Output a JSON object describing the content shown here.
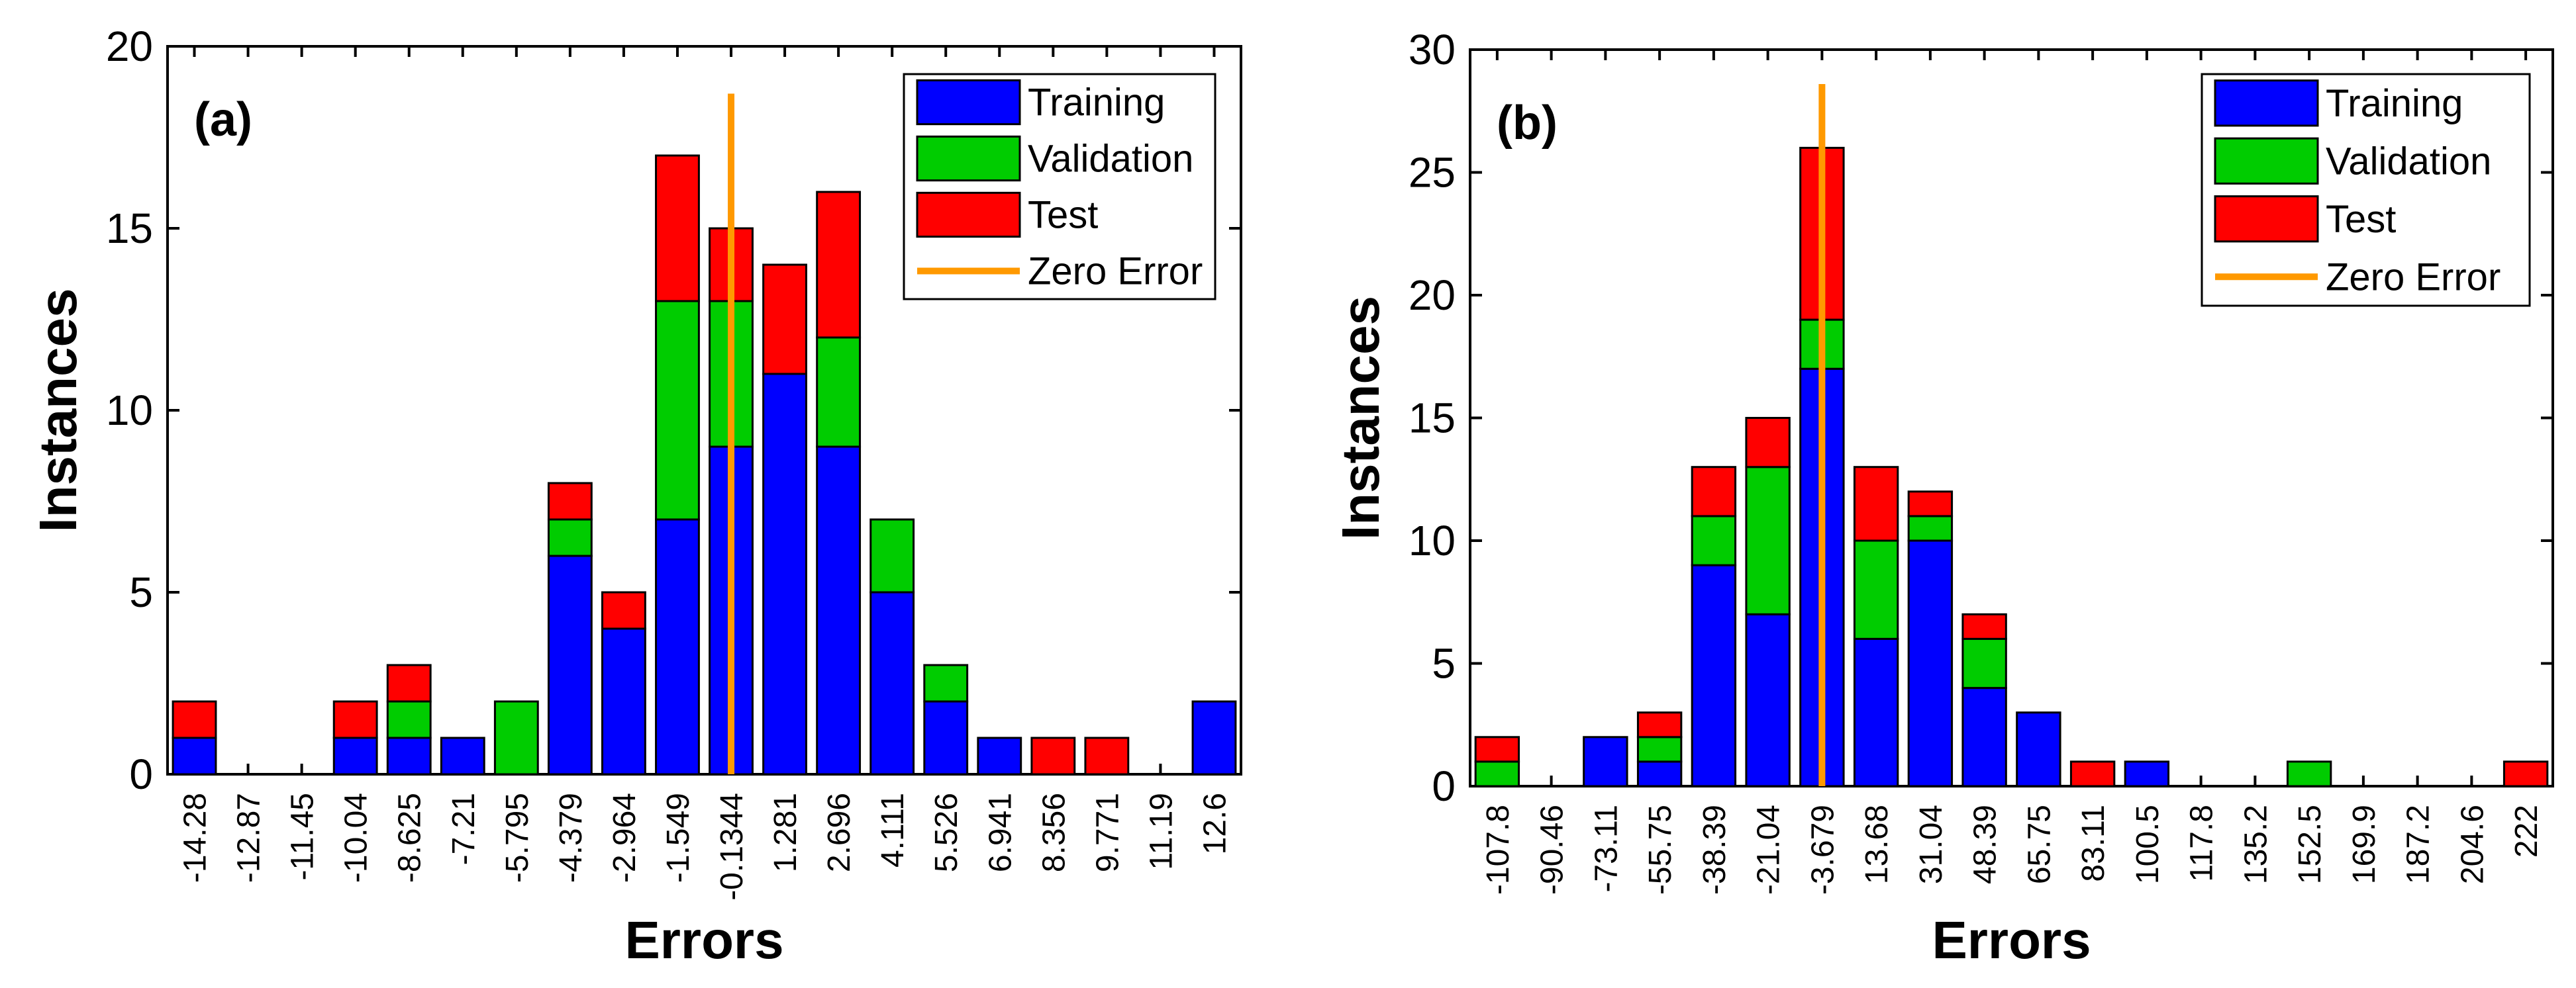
{
  "colors": {
    "training": "#0000FF",
    "validation": "#00CC00",
    "test": "#FF0000",
    "zero_error": "#FF9900",
    "axis": "#000000"
  },
  "chart_data": [
    {
      "type": "bar",
      "stacked": true,
      "panel_label": "(a)",
      "xlabel": "Errors",
      "ylabel": "Instances",
      "ylim": [
        0,
        20
      ],
      "yticks": [
        "0",
        "5",
        "10",
        "15",
        "20"
      ],
      "categories": [
        "-14.28",
        "-12.87",
        "-11.45",
        "-10.04",
        "-8.625",
        "-7.21",
        "-5.795",
        "-4.379",
        "-2.964",
        "-1.549",
        "-0.1344",
        "1.281",
        "2.696",
        "4.111",
        "5.526",
        "6.941",
        "8.356",
        "9.771",
        "11.19",
        "12.6"
      ],
      "series": [
        {
          "name": "Training",
          "values": [
            1,
            0,
            0,
            1,
            1,
            1,
            0,
            6,
            4,
            7,
            9,
            11,
            9,
            5,
            2,
            1,
            0,
            0,
            0,
            2
          ]
        },
        {
          "name": "Validation",
          "values": [
            0,
            0,
            0,
            0,
            1,
            0,
            2,
            1,
            0,
            6,
            4,
            0,
            3,
            2,
            1,
            0,
            0,
            0,
            0,
            0
          ]
        },
        {
          "name": "Test",
          "values": [
            1,
            0,
            0,
            1,
            1,
            0,
            0,
            1,
            1,
            4,
            2,
            3,
            4,
            0,
            0,
            0,
            1,
            1,
            0,
            0
          ]
        }
      ],
      "zero_error": {
        "name": "Zero Error",
        "category_index": 10.0,
        "y_top": 18.7
      },
      "legend": [
        "Training",
        "Validation",
        "Test",
        "Zero Error"
      ],
      "legend_position": "top-right"
    },
    {
      "type": "bar",
      "stacked": true,
      "panel_label": "(b)",
      "xlabel": "Errors",
      "ylabel": "Instances",
      "ylim": [
        0,
        30
      ],
      "yticks": [
        "0",
        "5",
        "10",
        "15",
        "20",
        "25",
        "30"
      ],
      "categories": [
        "-107.8",
        "-90.46",
        "-73.11",
        "-55.75",
        "-38.39",
        "-21.04",
        "-3.679",
        "13.68",
        "31.04",
        "48.39",
        "65.75",
        "83.11",
        "100.5",
        "117.8",
        "135.2",
        "152.5",
        "169.9",
        "187.2",
        "204.6",
        "222"
      ],
      "series": [
        {
          "name": "Training",
          "values": [
            0,
            0,
            2,
            1,
            9,
            7,
            17,
            6,
            10,
            4,
            3,
            0,
            1,
            0,
            0,
            0,
            0,
            0,
            0,
            0
          ]
        },
        {
          "name": "Validation",
          "values": [
            1,
            0,
            0,
            1,
            2,
            6,
            2,
            4,
            1,
            2,
            0,
            0,
            0,
            0,
            0,
            1,
            0,
            0,
            0,
            0
          ]
        },
        {
          "name": "Test",
          "values": [
            1,
            0,
            0,
            1,
            2,
            2,
            7,
            3,
            1,
            1,
            0,
            1,
            0,
            0,
            0,
            0,
            0,
            0,
            0,
            1
          ]
        }
      ],
      "zero_error": {
        "name": "Zero Error",
        "category_index": 6.0,
        "y_top": 28.6
      },
      "legend": [
        "Training",
        "Validation",
        "Test",
        "Zero Error"
      ],
      "legend_position": "top-right"
    }
  ]
}
